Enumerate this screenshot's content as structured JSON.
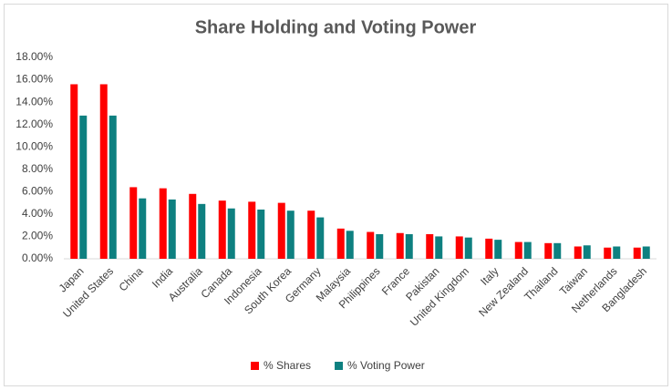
{
  "chart_data": {
    "type": "bar",
    "title": "Share Holding and Voting Power",
    "categories": [
      "Japan",
      "United States",
      "China",
      "India",
      "Australia",
      "Canada",
      "Indonesia",
      "South Korea",
      "Germany",
      "Malaysia",
      "Philippines",
      "France",
      "Pakistan",
      "United Kingdom",
      "Italy",
      "New Zealand",
      "Thailand",
      "Taiwan",
      "Netherlands",
      "Bangladesh"
    ],
    "series": [
      {
        "name": "% Shares",
        "color": "#ff0000",
        "values": [
          15.6,
          15.6,
          6.4,
          6.3,
          5.8,
          5.2,
          5.1,
          5.0,
          4.3,
          2.7,
          2.4,
          2.3,
          2.2,
          2.0,
          1.8,
          1.5,
          1.4,
          1.1,
          1.0,
          1.0
        ]
      },
      {
        "name": "% Voting Power",
        "color": "#0e8080",
        "values": [
          12.8,
          12.8,
          5.4,
          5.3,
          4.9,
          4.5,
          4.4,
          4.3,
          3.7,
          2.5,
          2.2,
          2.2,
          2.0,
          1.9,
          1.7,
          1.5,
          1.4,
          1.2,
          1.1,
          1.1
        ]
      }
    ],
    "ylim": [
      0,
      18
    ],
    "yticks": [
      {
        "value": 0,
        "label": "0.00%"
      },
      {
        "value": 2,
        "label": "2.00%"
      },
      {
        "value": 4,
        "label": "4.00%"
      },
      {
        "value": 6,
        "label": "6.00%"
      },
      {
        "value": 8,
        "label": "8.00%"
      },
      {
        "value": 10,
        "label": "10.00%"
      },
      {
        "value": 12,
        "label": "12.00%"
      },
      {
        "value": 14,
        "label": "14.00%"
      },
      {
        "value": 16,
        "label": "16.00%"
      },
      {
        "value": 18,
        "label": "18.00%"
      }
    ],
    "grid": false,
    "legend": "bottom"
  }
}
